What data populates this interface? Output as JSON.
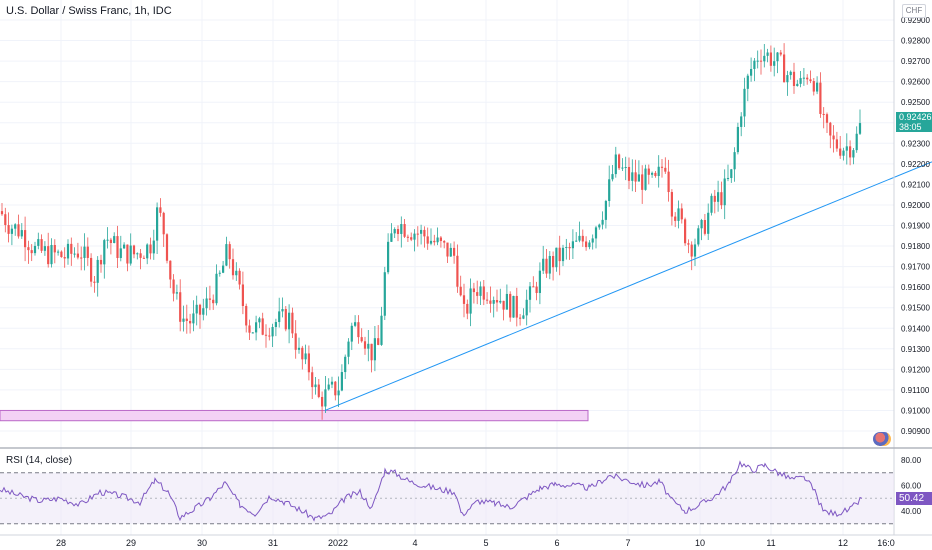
{
  "chart_data": [
    {
      "type": "candlestick",
      "title": "U.S. Dollar / Swiss Franc, 1h, IDC",
      "currency": "CHF",
      "x_ticks": [
        "28",
        "29",
        "30",
        "31",
        "2022",
        "4",
        "5",
        "6",
        "7",
        "10",
        "11",
        "12",
        "16:0"
      ],
      "y_ticks": [
        "0.92900",
        "0.92800",
        "0.92700",
        "0.92600",
        "0.92500",
        "0.92400",
        "0.92300",
        "0.92200",
        "0.92100",
        "0.92000",
        "0.91900",
        "0.91800",
        "0.91700",
        "0.91600",
        "0.91500",
        "0.91400",
        "0.91300",
        "0.91200",
        "0.91100",
        "0.91000",
        "0.90900"
      ],
      "ylim": [
        0.9087,
        0.9294
      ],
      "current_price": "0.92426",
      "countdown": "38:05",
      "price_path": [
        [
          0,
          0.9197
        ],
        [
          10,
          0.919
        ],
        [
          22,
          0.9187
        ],
        [
          35,
          0.9178
        ],
        [
          50,
          0.9176
        ],
        [
          65,
          0.9175
        ],
        [
          80,
          0.9178
        ],
        [
          95,
          0.9165
        ],
        [
          105,
          0.9185
        ],
        [
          120,
          0.9177
        ],
        [
          135,
          0.9176
        ],
        [
          150,
          0.918
        ],
        [
          158,
          0.9198
        ],
        [
          165,
          0.9185
        ],
        [
          172,
          0.916
        ],
        [
          182,
          0.9145
        ],
        [
          192,
          0.9143
        ],
        [
          205,
          0.915
        ],
        [
          218,
          0.9162
        ],
        [
          228,
          0.9178
        ],
        [
          238,
          0.916
        ],
        [
          250,
          0.914
        ],
        [
          262,
          0.914
        ],
        [
          275,
          0.9143
        ],
        [
          290,
          0.9145
        ],
        [
          300,
          0.9125
        ],
        [
          310,
          0.912
        ],
        [
          318,
          0.9105
        ],
        [
          328,
          0.9108
        ],
        [
          340,
          0.9112
        ],
        [
          350,
          0.914
        ],
        [
          360,
          0.9142
        ],
        [
          370,
          0.9128
        ],
        [
          378,
          0.913
        ],
        [
          386,
          0.9172
        ],
        [
          395,
          0.9192
        ],
        [
          410,
          0.9188
        ],
        [
          425,
          0.9185
        ],
        [
          440,
          0.918
        ],
        [
          455,
          0.9175
        ],
        [
          463,
          0.9145
        ],
        [
          475,
          0.916
        ],
        [
          490,
          0.9158
        ],
        [
          505,
          0.9153
        ],
        [
          518,
          0.9148
        ],
        [
          530,
          0.9155
        ],
        [
          545,
          0.917
        ],
        [
          560,
          0.9175
        ],
        [
          575,
          0.918
        ],
        [
          590,
          0.9185
        ],
        [
          605,
          0.92
        ],
        [
          615,
          0.922
        ],
        [
          630,
          0.9213
        ],
        [
          645,
          0.9212
        ],
        [
          655,
          0.921
        ],
        [
          665,
          0.9222
        ],
        [
          672,
          0.92
        ],
        [
          680,
          0.9192
        ],
        [
          690,
          0.918
        ],
        [
          700,
          0.9185
        ],
        [
          712,
          0.92
        ],
        [
          722,
          0.9205
        ],
        [
          732,
          0.9215
        ],
        [
          740,
          0.9245
        ],
        [
          750,
          0.9265
        ],
        [
          760,
          0.9275
        ],
        [
          770,
          0.9272
        ],
        [
          780,
          0.9268
        ],
        [
          790,
          0.9262
        ],
        [
          800,
          0.9258
        ],
        [
          808,
          0.9265
        ],
        [
          815,
          0.926
        ],
        [
          822,
          0.924
        ],
        [
          832,
          0.923
        ],
        [
          845,
          0.9228
        ],
        [
          855,
          0.923
        ],
        [
          863,
          0.9243
        ]
      ],
      "trendline": {
        "from": [
          325,
          0.91
        ],
        "to": [
          932,
          0.9221
        ]
      },
      "support_zone": [
        0.9095,
        0.91
      ],
      "rsi": {
        "label": "RSI (14, close)",
        "y_ticks": [
          "80.00",
          "60.00",
          "40.00"
        ],
        "ylim": [
          25,
          85
        ],
        "bands": [
          70,
          30
        ],
        "current": "50.42",
        "path": [
          [
            0,
            57
          ],
          [
            20,
            52
          ],
          [
            40,
            48
          ],
          [
            60,
            50
          ],
          [
            80,
            45
          ],
          [
            100,
            55
          ],
          [
            120,
            52
          ],
          [
            140,
            47
          ],
          [
            155,
            64
          ],
          [
            168,
            55
          ],
          [
            180,
            35
          ],
          [
            195,
            42
          ],
          [
            210,
            50
          ],
          [
            225,
            62
          ],
          [
            240,
            45
          ],
          [
            255,
            38
          ],
          [
            270,
            52
          ],
          [
            285,
            47
          ],
          [
            300,
            41
          ],
          [
            315,
            34
          ],
          [
            330,
            37
          ],
          [
            345,
            50
          ],
          [
            360,
            55
          ],
          [
            372,
            42
          ],
          [
            385,
            72
          ],
          [
            395,
            70
          ],
          [
            410,
            63
          ],
          [
            425,
            60
          ],
          [
            440,
            57
          ],
          [
            455,
            55
          ],
          [
            462,
            37
          ],
          [
            478,
            48
          ],
          [
            495,
            46
          ],
          [
            510,
            43
          ],
          [
            525,
            50
          ],
          [
            540,
            58
          ],
          [
            555,
            61
          ],
          [
            575,
            60
          ],
          [
            590,
            58
          ],
          [
            610,
            68
          ],
          [
            628,
            64
          ],
          [
            645,
            60
          ],
          [
            660,
            63
          ],
          [
            672,
            48
          ],
          [
            685,
            40
          ],
          [
            700,
            45
          ],
          [
            715,
            52
          ],
          [
            730,
            62
          ],
          [
            740,
            78
          ],
          [
            752,
            72
          ],
          [
            765,
            76
          ],
          [
            778,
            70
          ],
          [
            792,
            65
          ],
          [
            805,
            66
          ],
          [
            815,
            55
          ],
          [
            823,
            40
          ],
          [
            835,
            38
          ],
          [
            850,
            41
          ],
          [
            862,
            50
          ]
        ]
      }
    }
  ]
}
